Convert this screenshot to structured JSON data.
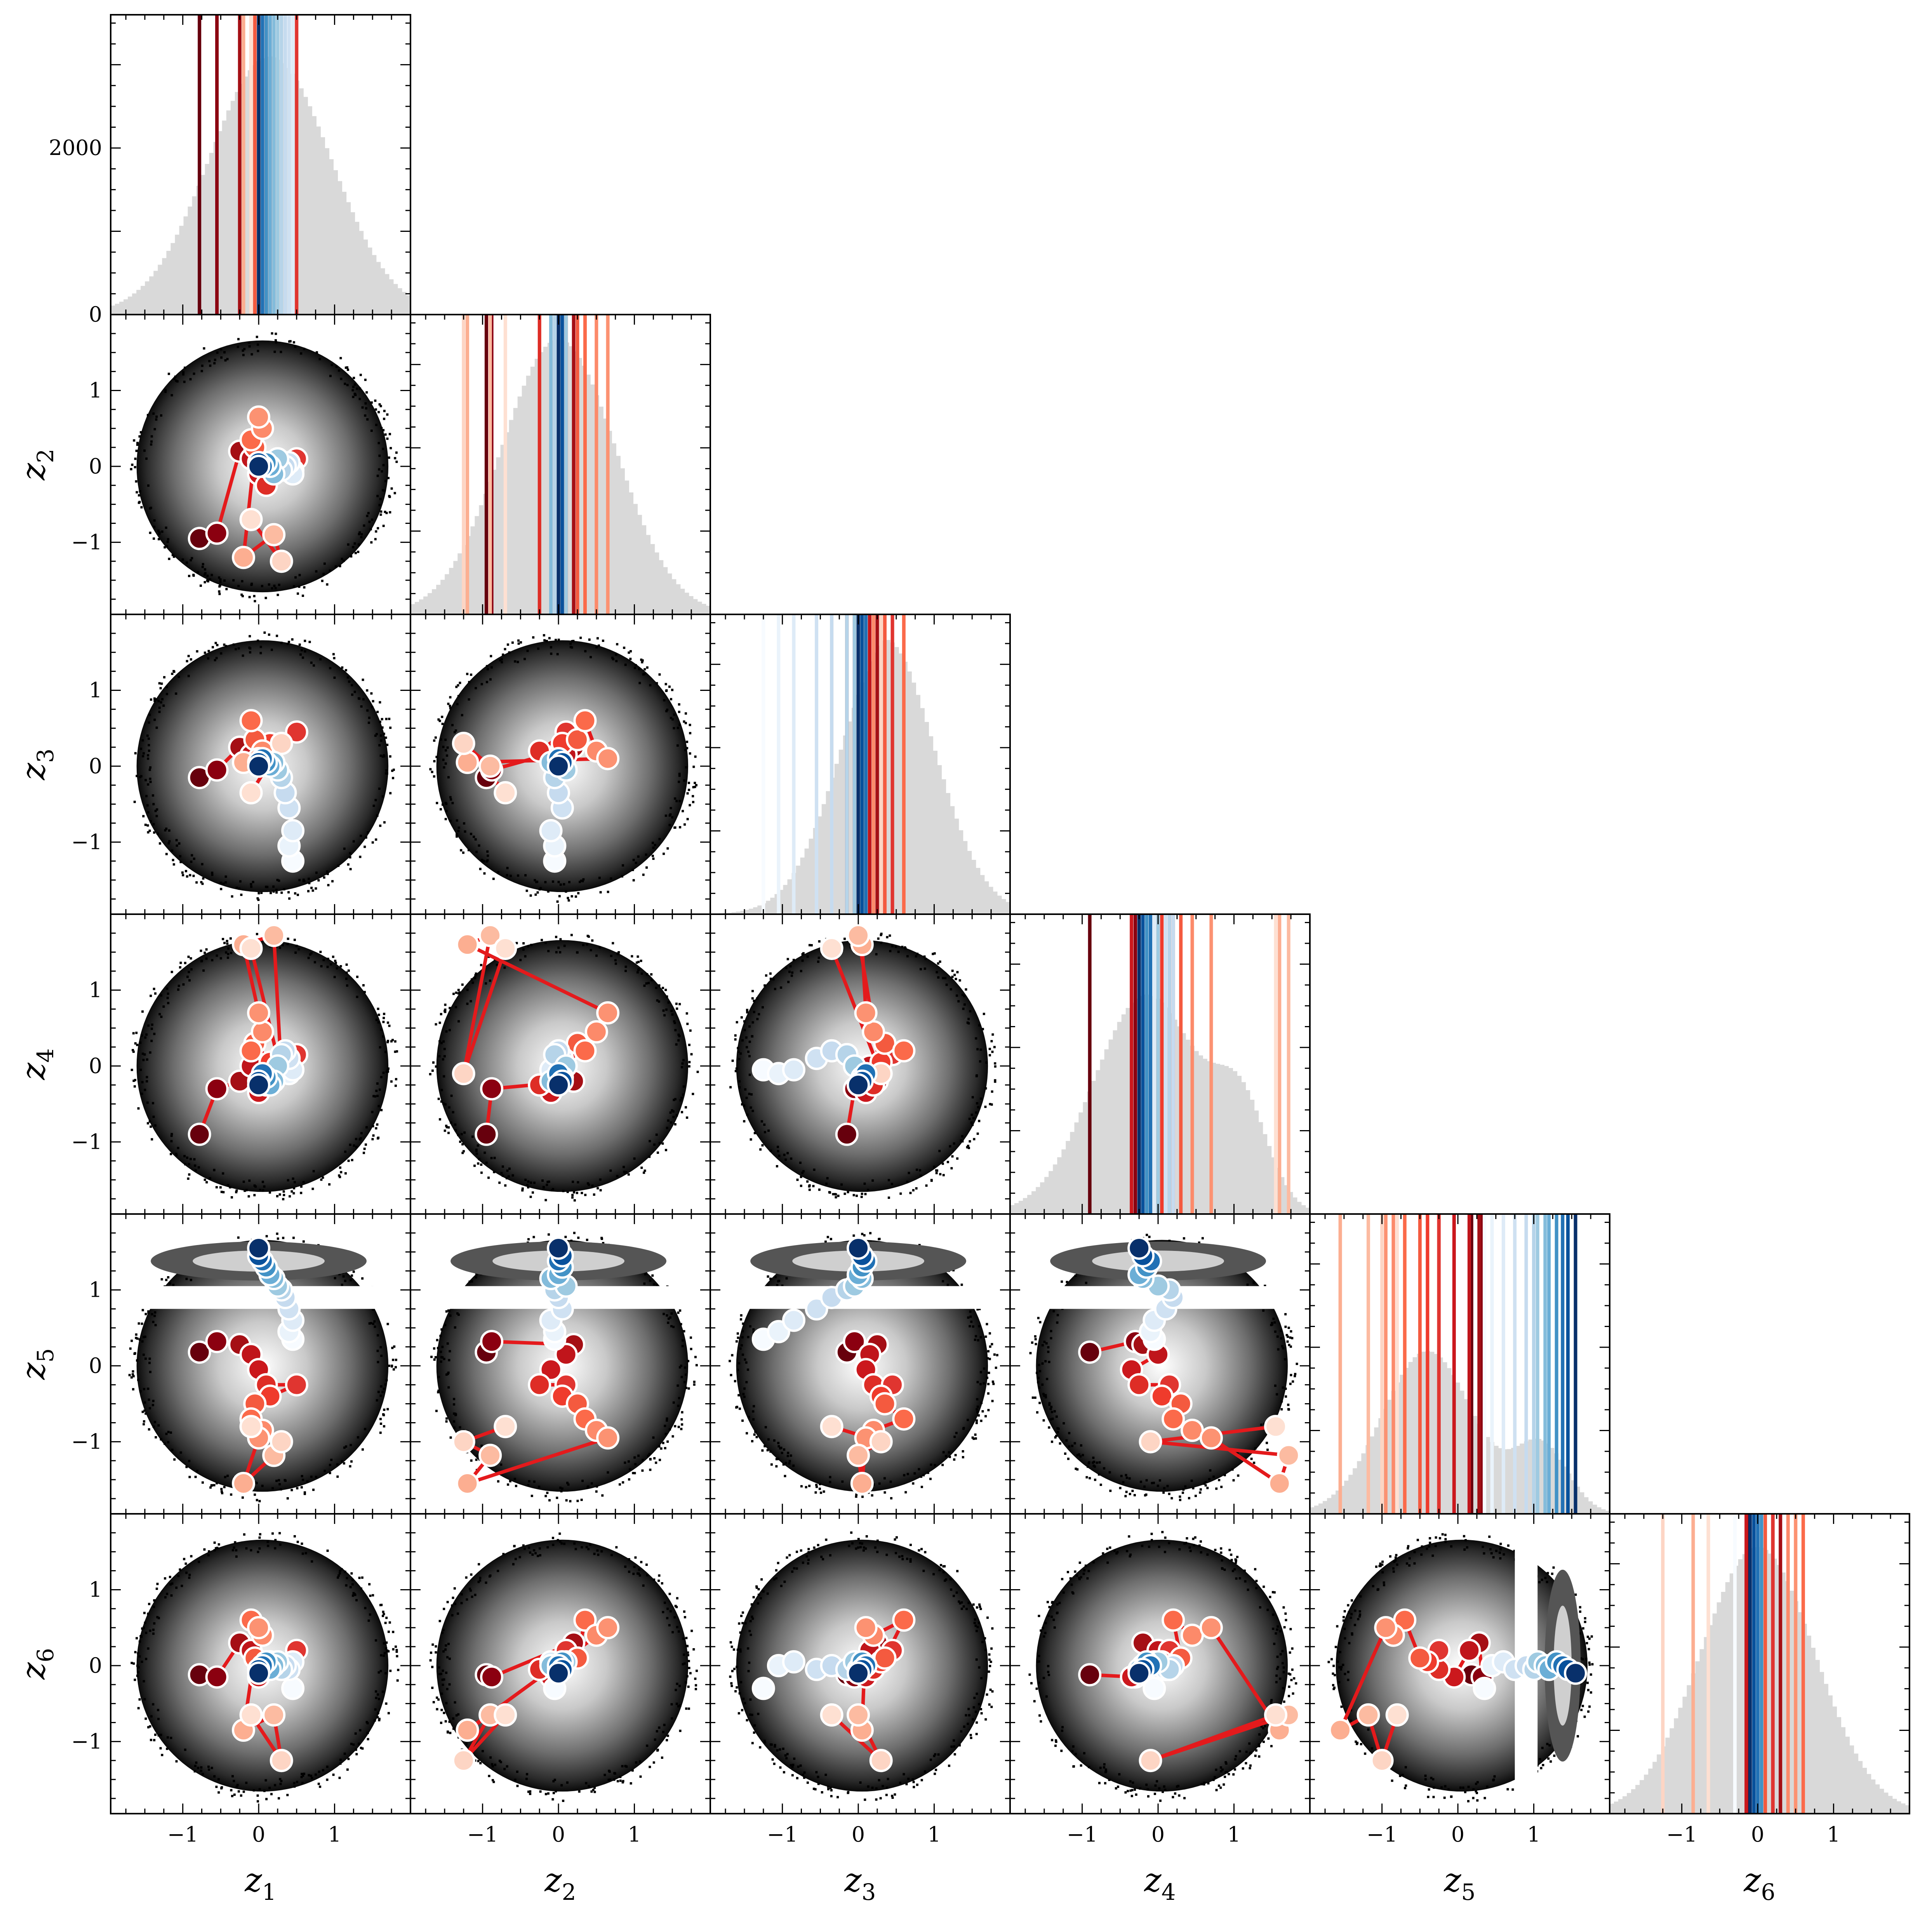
{
  "chart_data": {
    "type": "corner",
    "variables": [
      "z1",
      "z2",
      "z3",
      "z4",
      "z5",
      "z6"
    ],
    "axis_labels": [
      {
        "base": "z",
        "sub": "1"
      },
      {
        "base": "z",
        "sub": "2"
      },
      {
        "base": "z",
        "sub": "3"
      },
      {
        "base": "z",
        "sub": "4"
      },
      {
        "base": "z",
        "sub": "5"
      },
      {
        "base": "z",
        "sub": "6"
      }
    ],
    "range": [
      -1.95,
      2.0
    ],
    "tick_values": [
      -1,
      0,
      1
    ],
    "tick_labels": [
      "−1",
      "0",
      "1"
    ],
    "hist_ylim": [
      0,
      3600
    ],
    "hist_ytick_values": [
      0,
      2000
    ],
    "hist_ytick_labels": [
      "0",
      "2000"
    ],
    "colors": {
      "histogram_fill": "#d9d9d9",
      "trajectory_line": "#e41a1c",
      "marker_edge": "#ffffff",
      "density_dark": "#000000",
      "density_light": "#ffffff"
    },
    "marginal_histograms": [
      {
        "variable": "z1",
        "shape": "normal",
        "mean": 0.15,
        "sd": 0.8,
        "peak": 3100
      },
      {
        "variable": "z2",
        "shape": "normal",
        "mean": 0.0,
        "sd": 0.75,
        "peak": 3300
      },
      {
        "variable": "z3",
        "shape": "skewed",
        "mean": 0.35,
        "sd": 0.65,
        "peak": 3300
      },
      {
        "variable": "z4",
        "shape": "bimodal",
        "mean": -0.15,
        "sd": 0.7,
        "peak": 3100
      },
      {
        "variable": "z5",
        "shape": "bimodal",
        "mean": -0.4,
        "sd": 0.6,
        "peak": 2300
      },
      {
        "variable": "z6",
        "shape": "normal",
        "mean": 0.0,
        "sd": 0.75,
        "peak": 3200
      }
    ],
    "points": [
      {
        "step": 1,
        "color": "#67000d",
        "values": [
          -0.78,
          -0.95,
          -0.15,
          -0.9,
          0.18,
          -0.12
        ]
      },
      {
        "step": 2,
        "color": "#8b0010",
        "values": [
          -0.55,
          -0.88,
          -0.05,
          -0.3,
          0.32,
          -0.15
        ]
      },
      {
        "step": 3,
        "color": "#a50f15",
        "values": [
          -0.25,
          0.2,
          0.25,
          -0.2,
          0.28,
          0.3
        ]
      },
      {
        "step": 4,
        "color": "#c0151b",
        "values": [
          -0.1,
          0.1,
          0.15,
          0.0,
          0.15,
          0.2
        ]
      },
      {
        "step": 5,
        "color": "#cb181d",
        "values": [
          0.0,
          -0.1,
          0.1,
          -0.35,
          -0.05,
          -0.15
        ]
      },
      {
        "step": 6,
        "color": "#de2d26",
        "values": [
          0.1,
          -0.25,
          0.2,
          -0.25,
          -0.25,
          -0.05
        ]
      },
      {
        "step": 7,
        "color": "#e03530",
        "values": [
          0.5,
          0.1,
          0.45,
          0.15,
          -0.25,
          0.2
        ]
      },
      {
        "step": 8,
        "color": "#ef3b2c",
        "values": [
          0.15,
          0.05,
          0.3,
          0.05,
          -0.4,
          0.05
        ]
      },
      {
        "step": 9,
        "color": "#f45a3f",
        "values": [
          -0.05,
          0.25,
          0.35,
          0.3,
          -0.5,
          0.1
        ]
      },
      {
        "step": 10,
        "color": "#fb6a4a",
        "values": [
          -0.1,
          0.35,
          0.6,
          0.2,
          -0.7,
          0.6
        ]
      },
      {
        "step": 11,
        "color": "#fc8a6a",
        "values": [
          0.05,
          0.5,
          0.2,
          0.45,
          -0.85,
          0.4
        ]
      },
      {
        "step": 12,
        "color": "#fc9272",
        "values": [
          0.0,
          0.65,
          0.1,
          0.7,
          -0.95,
          0.5
        ]
      },
      {
        "step": 13,
        "color": "#fcae91",
        "values": [
          -0.2,
          -1.2,
          0.05,
          1.6,
          -1.55,
          -0.85
        ]
      },
      {
        "step": 14,
        "color": "#fcbba1",
        "values": [
          0.2,
          -0.9,
          0.0,
          1.72,
          -1.18,
          -0.65
        ]
      },
      {
        "step": 15,
        "color": "#fdd5c4",
        "values": [
          0.3,
          -1.25,
          0.3,
          -0.1,
          -1.0,
          -1.25
        ]
      },
      {
        "step": 16,
        "color": "#fee0d2",
        "values": [
          -0.1,
          -0.7,
          -0.35,
          1.55,
          -0.8,
          -0.65
        ]
      },
      {
        "step": 17,
        "color": "#f7fbff",
        "values": [
          0.45,
          -0.05,
          -1.25,
          -0.05,
          0.35,
          -0.3
        ]
      },
      {
        "step": 18,
        "color": "#eaf3fb",
        "values": [
          0.4,
          -0.05,
          -1.05,
          -0.1,
          0.45,
          0.0
        ]
      },
      {
        "step": 19,
        "color": "#deebf7",
        "values": [
          0.45,
          -0.1,
          -0.85,
          -0.05,
          0.6,
          0.05
        ]
      },
      {
        "step": 20,
        "color": "#cfe1f2",
        "values": [
          0.4,
          0.05,
          -0.55,
          0.1,
          0.75,
          -0.05
        ]
      },
      {
        "step": 21,
        "color": "#c6dbef",
        "values": [
          0.35,
          0.0,
          -0.35,
          0.2,
          0.9,
          0.0
        ]
      },
      {
        "step": 22,
        "color": "#b6d4e9",
        "values": [
          0.3,
          -0.05,
          -0.15,
          0.15,
          1.0,
          -0.05
        ]
      },
      {
        "step": 23,
        "color": "#9ecae1",
        "values": [
          0.25,
          0.1,
          -0.05,
          0.0,
          1.05,
          0.05
        ]
      },
      {
        "step": 24,
        "color": "#84bcdb",
        "values": [
          0.2,
          -0.1,
          0.05,
          -0.2,
          1.15,
          0.0
        ]
      },
      {
        "step": 25,
        "color": "#6baed6",
        "values": [
          0.15,
          0.0,
          0.0,
          -0.25,
          1.2,
          -0.05
        ]
      },
      {
        "step": 26,
        "color": "#4292c6",
        "values": [
          0.1,
          0.05,
          0.05,
          -0.15,
          1.3,
          0.05
        ]
      },
      {
        "step": 27,
        "color": "#2171b5",
        "values": [
          0.05,
          0.0,
          0.1,
          -0.1,
          1.38,
          0.0
        ]
      },
      {
        "step": 28,
        "color": "#08519c",
        "values": [
          0.0,
          0.05,
          0.05,
          -0.2,
          1.45,
          -0.05
        ]
      },
      {
        "step": 29,
        "color": "#08306b",
        "values": [
          0.0,
          0.0,
          0.0,
          -0.25,
          1.55,
          -0.1
        ]
      }
    ]
  }
}
